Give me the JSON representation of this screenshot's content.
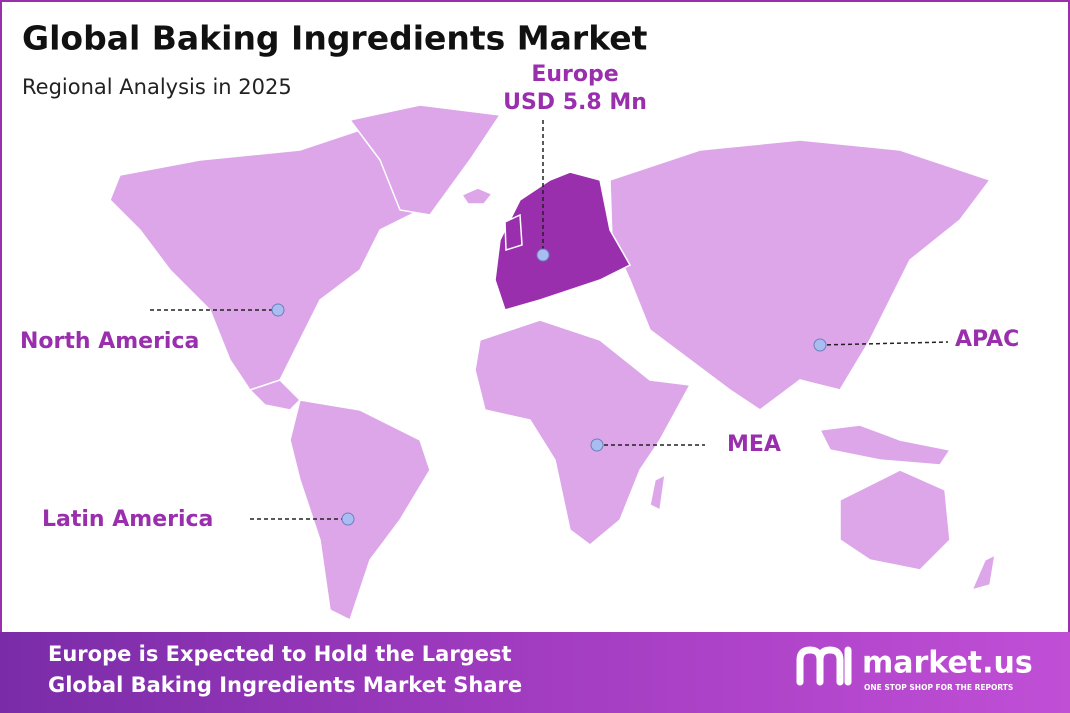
{
  "header": {
    "title": "Global Baking Ingredients Market",
    "subtitle": "Regional Analysis in 2025"
  },
  "regions": [
    {
      "label": "Europe",
      "value": "USD 5.8 Mn"
    },
    {
      "label": "North America"
    },
    {
      "label": "APAC"
    },
    {
      "label": "MEA"
    },
    {
      "label": "Latin America"
    }
  ],
  "footer": {
    "lines": [
      "Europe is Expected to Hold the Largest",
      "Global Baking Ingredients Market Share"
    ],
    "brand": "market.us",
    "tagline": "ONE STOP SHOP FOR THE REPORTS"
  }
}
